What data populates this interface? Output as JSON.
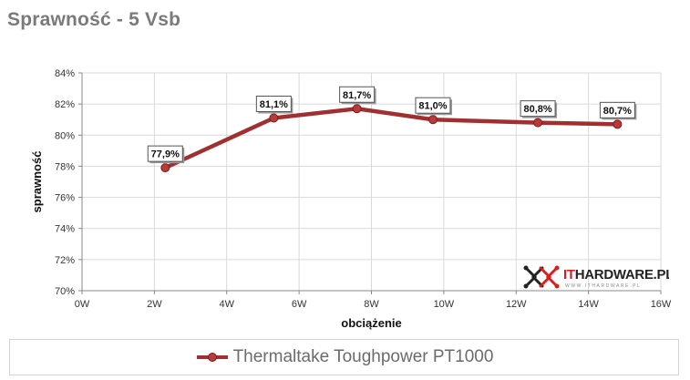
{
  "title": "Sprawność - 5 Vsb",
  "watermark": {
    "brand_prefix": "IT",
    "brand_rest": "HARDWARE.PL",
    "sub": "WWW.ITHARDWARE.PL"
  },
  "colors": {
    "series": "#a03030",
    "marker": "#b83a3a",
    "grid": "#d9d9d9",
    "title": "#7a7a7a"
  },
  "chart_data": {
    "type": "line",
    "title": "Sprawność - 5 Vsb",
    "xlabel": "obciążenie",
    "ylabel": "sprawność",
    "xlim": [
      0,
      16
    ],
    "ylim": [
      70,
      84
    ],
    "x_ticks": [
      0,
      2,
      4,
      6,
      8,
      10,
      12,
      14,
      16
    ],
    "x_tick_labels": [
      "0W",
      "2W",
      "4W",
      "6W",
      "8W",
      "10W",
      "12W",
      "14W",
      "16W"
    ],
    "y_ticks": [
      70,
      72,
      74,
      76,
      78,
      80,
      82,
      84
    ],
    "y_tick_labels": [
      "70%",
      "72%",
      "74%",
      "76%",
      "78%",
      "80%",
      "82%",
      "84%"
    ],
    "grid": true,
    "legend": "bottom",
    "series": [
      {
        "name": "Thermaltake Toughpower PT1000",
        "x": [
          2.3,
          5.3,
          7.6,
          9.7,
          12.6,
          14.8
        ],
        "y": [
          77.9,
          81.1,
          81.7,
          81.0,
          80.8,
          80.7
        ],
        "labels": [
          "77,9%",
          "81,1%",
          "81,7%",
          "81,0%",
          "80,8%",
          "80,7%"
        ]
      }
    ]
  }
}
